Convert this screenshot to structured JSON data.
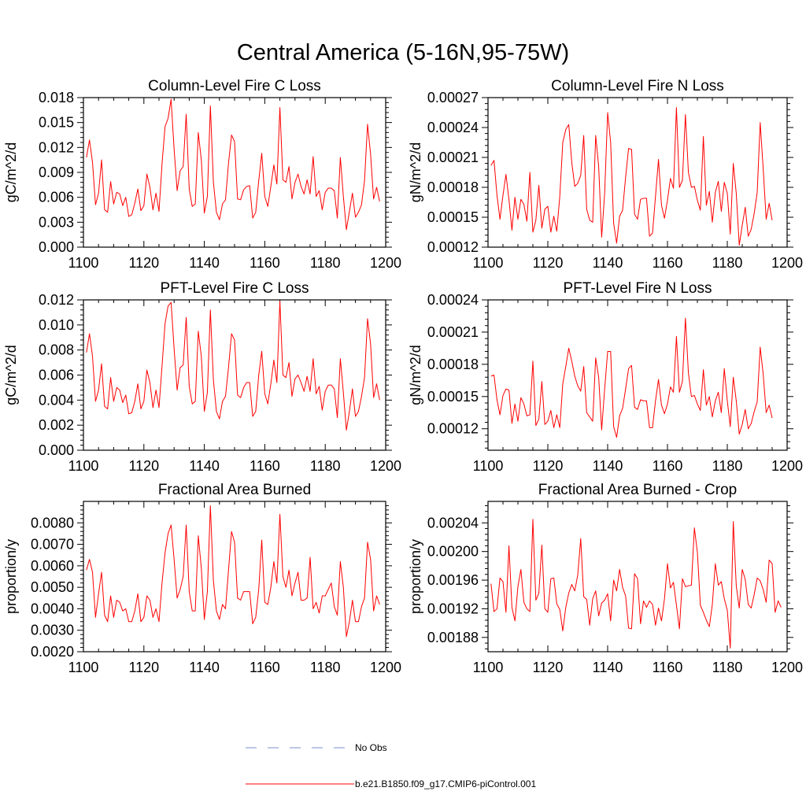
{
  "figure_title": "Central America (5-16N,95-75W)",
  "colors": {
    "series": "#ff0000",
    "obs": "#7a8fc7",
    "frame": "#000000"
  },
  "legend": [
    {
      "label": "No Obs",
      "style": "dashed",
      "color": "#7a8fc7"
    },
    {
      "label": "b.e21.B1850.f09_g17.CMIP6-piControl.001",
      "style": "solid",
      "color": "#ff0000"
    }
  ],
  "chart_data": [
    {
      "type": "line",
      "title": "Column-Level Fire C Loss",
      "ylabel": "gC/m^2/d",
      "xlabel": "",
      "xlim": [
        1100,
        1200
      ],
      "ylim": [
        0,
        0.018
      ],
      "xticks": [
        1100,
        1120,
        1140,
        1160,
        1180,
        1200
      ],
      "xtick_labels": [
        "1100",
        "1120",
        "1140",
        "1160",
        "1180",
        "1200"
      ],
      "yticks": [
        0,
        0.003,
        0.006,
        0.009,
        0.012,
        0.015,
        0.018
      ],
      "ytick_labels": [
        "0.000",
        "0.003",
        "0.006",
        "0.009",
        "0.012",
        "0.015",
        "0.018"
      ],
      "series": [
        {
          "name": "b.e21.B1850.f09_g17.CMIP6-piControl.001",
          "x_start": 1101,
          "values": [
            0.0108,
            0.0129,
            0.0102,
            0.0051,
            0.0065,
            0.0105,
            0.0045,
            0.0042,
            0.0079,
            0.0052,
            0.0066,
            0.0064,
            0.005,
            0.006,
            0.0037,
            0.0039,
            0.0053,
            0.007,
            0.0044,
            0.005,
            0.0088,
            0.0072,
            0.0045,
            0.0065,
            0.0043,
            0.01,
            0.0145,
            0.0155,
            0.0178,
            0.0118,
            0.0068,
            0.0092,
            0.0097,
            0.016,
            0.007,
            0.0049,
            0.0052,
            0.0138,
            0.0105,
            0.0041,
            0.0061,
            0.017,
            0.0078,
            0.0042,
            0.0033,
            0.0052,
            0.0057,
            0.0101,
            0.0135,
            0.0127,
            0.0058,
            0.0057,
            0.0069,
            0.0073,
            0.0074,
            0.0035,
            0.0042,
            0.008,
            0.0113,
            0.0061,
            0.0049,
            0.0073,
            0.0099,
            0.0076,
            0.0168,
            0.0081,
            0.0078,
            0.0097,
            0.0058,
            0.0078,
            0.0088,
            0.0073,
            0.0064,
            0.0081,
            0.0064,
            0.0109,
            0.0061,
            0.0068,
            0.0045,
            0.0066,
            0.0071,
            0.0071,
            0.0068,
            0.0035,
            0.0108,
            0.0061,
            0.0021,
            0.0043,
            0.0065,
            0.0036,
            0.0042,
            0.0051,
            0.008,
            0.0148,
            0.0112,
            0.0058,
            0.0072,
            0.0055
          ]
        }
      ]
    },
    {
      "type": "line",
      "title": "Column-Level Fire N Loss",
      "ylabel": "gN/m^2/d",
      "xlabel": "",
      "xlim": [
        1100,
        1200
      ],
      "ylim": [
        0.00012,
        0.00027
      ],
      "xticks": [
        1100,
        1120,
        1140,
        1160,
        1180,
        1200
      ],
      "xtick_labels": [
        "1100",
        "1120",
        "1140",
        "1160",
        "1180",
        "1200"
      ],
      "yticks": [
        0.00012,
        0.00015,
        0.00018,
        0.00021,
        0.00024,
        0.00027
      ],
      "ytick_labels": [
        "0.00012",
        "0.00015",
        "0.00018",
        "0.00021",
        "0.00024",
        "0.00027"
      ],
      "series": [
        {
          "name": "b.e21.B1850.f09_g17.CMIP6-piControl.001",
          "x_start": 1101,
          "values": [
            0.000202,
            0.000207,
            0.000172,
            0.000148,
            0.000172,
            0.000193,
            0.000168,
            0.000137,
            0.00017,
            0.000148,
            0.000168,
            0.000163,
            0.000146,
            0.000195,
            0.000135,
            0.000147,
            0.000182,
            0.000139,
            0.000158,
            0.000161,
            0.000135,
            0.000151,
            0.000136,
            0.000171,
            0.000225,
            0.000238,
            0.000243,
            0.000205,
            0.000181,
            0.000184,
            0.000192,
            0.000232,
            0.000158,
            0.000147,
            0.000145,
            0.000232,
            0.000201,
            0.00013,
            0.000174,
            0.000255,
            0.000225,
            0.000144,
            0.000124,
            0.000151,
            0.000157,
            0.00019,
            0.000219,
            0.000218,
            0.000153,
            0.000148,
            0.000168,
            0.000169,
            0.000169,
            0.000131,
            0.000134,
            0.000171,
            0.000208,
            0.000162,
            0.000149,
            0.000167,
            0.000189,
            0.000179,
            0.00026,
            0.00018,
            0.000187,
            0.000253,
            0.000195,
            0.00018,
            0.000181,
            0.000167,
            0.000157,
            0.000231,
            0.000162,
            0.000176,
            0.000145,
            0.000175,
            0.000186,
            0.000156,
            0.000185,
            0.000174,
            0.000133,
            0.000204,
            0.000174,
            0.000122,
            0.000142,
            0.00016,
            0.000131,
            0.000138,
            0.000154,
            0.000175,
            0.000245,
            0.000199,
            0.000148,
            0.000164,
            0.000147
          ]
        }
      ]
    },
    {
      "type": "line",
      "title": "PFT-Level Fire C Loss",
      "ylabel": "gC/m^2/d",
      "xlabel": "",
      "xlim": [
        1100,
        1200
      ],
      "ylim": [
        0,
        0.012
      ],
      "xticks": [
        1100,
        1120,
        1140,
        1160,
        1180,
        1200
      ],
      "xtick_labels": [
        "1100",
        "1120",
        "1140",
        "1160",
        "1180",
        "1200"
      ],
      "yticks": [
        0,
        0.002,
        0.004,
        0.006,
        0.008,
        0.01,
        0.012
      ],
      "ytick_labels": [
        "0.000",
        "0.002",
        "0.004",
        "0.006",
        "0.008",
        "0.010",
        "0.012"
      ],
      "series": [
        {
          "name": "b.e21.B1850.f09_g17.CMIP6-piControl.001",
          "x_start": 1101,
          "values": [
            0.0078,
            0.0093,
            0.0075,
            0.0039,
            0.0048,
            0.0069,
            0.0035,
            0.0033,
            0.0058,
            0.0039,
            0.005,
            0.0048,
            0.0038,
            0.0044,
            0.0029,
            0.003,
            0.0039,
            0.0053,
            0.0033,
            0.0039,
            0.0064,
            0.0054,
            0.0034,
            0.0048,
            0.0034,
            0.0067,
            0.0101,
            0.0115,
            0.0118,
            0.0081,
            0.0048,
            0.0066,
            0.0068,
            0.0106,
            0.0051,
            0.0037,
            0.0039,
            0.0095,
            0.0075,
            0.0031,
            0.0046,
            0.0112,
            0.0056,
            0.0031,
            0.0025,
            0.0039,
            0.0043,
            0.0066,
            0.0093,
            0.0088,
            0.0044,
            0.0042,
            0.005,
            0.0054,
            0.0054,
            0.0027,
            0.0031,
            0.006,
            0.0079,
            0.0045,
            0.0037,
            0.0053,
            0.0072,
            0.0054,
            0.0119,
            0.006,
            0.0058,
            0.007,
            0.0043,
            0.0057,
            0.006,
            0.0054,
            0.0047,
            0.0059,
            0.0047,
            0.0073,
            0.0045,
            0.0051,
            0.0032,
            0.0047,
            0.0052,
            0.0052,
            0.0049,
            0.0026,
            0.0073,
            0.0046,
            0.0016,
            0.0031,
            0.0049,
            0.0027,
            0.0031,
            0.0043,
            0.0058,
            0.0105,
            0.0085,
            0.0042,
            0.0053,
            0.004
          ]
        }
      ]
    },
    {
      "type": "line",
      "title": "PFT-Level Fire N Loss",
      "ylabel": "gN/m^2/d",
      "xlabel": "",
      "xlim": [
        1100,
        1200
      ],
      "ylim": [
        0.0001,
        0.00024
      ],
      "xticks": [
        1100,
        1120,
        1140,
        1160,
        1180,
        1200
      ],
      "xtick_labels": [
        "1100",
        "1120",
        "1140",
        "1160",
        "1180",
        "1200"
      ],
      "yticks": [
        0.00012,
        0.00015,
        0.00018,
        0.00021,
        0.00024
      ],
      "ytick_labels": [
        "0.00012",
        "0.00015",
        "0.00018",
        "0.00021",
        "0.00024"
      ],
      "series": [
        {
          "name": "b.e21.B1850.f09_g17.CMIP6-piControl.001",
          "x_start": 1101,
          "values": [
            0.000169,
            0.00017,
            0.000147,
            0.000133,
            0.000151,
            0.000157,
            0.000156,
            0.000125,
            0.000143,
            0.000127,
            0.000149,
            0.000143,
            0.000132,
            0.000133,
            0.000183,
            0.000123,
            0.000129,
            0.000164,
            0.000124,
            0.000127,
            0.000137,
            0.000121,
            0.000133,
            0.000121,
            0.000162,
            0.000178,
            0.000195,
            0.000183,
            0.000169,
            0.00016,
            0.000155,
            0.000178,
            0.000135,
            0.000131,
            0.000127,
            0.000186,
            0.000168,
            0.000119,
            0.000157,
            0.000192,
            0.000192,
            0.000122,
            0.000112,
            0.000132,
            0.000139,
            0.000157,
            0.000176,
            0.000179,
            0.00014,
            0.000138,
            0.000147,
            0.000146,
            0.000146,
            0.000121,
            0.000121,
            0.000146,
            0.000166,
            0.000142,
            0.000134,
            0.000143,
            0.000159,
            0.000154,
            0.000206,
            0.000154,
            0.000164,
            0.000223,
            0.000172,
            0.00015,
            0.000151,
            0.000143,
            0.000137,
            0.000175,
            0.000142,
            0.00015,
            0.000131,
            0.000146,
            0.000154,
            0.000135,
            0.000176,
            0.000146,
            0.000122,
            0.000168,
            0.000146,
            0.000115,
            0.000124,
            0.000138,
            0.00012,
            0.000125,
            0.000136,
            0.000145,
            0.000196,
            0.000171,
            0.000135,
            0.000142,
            0.00013
          ]
        }
      ]
    },
    {
      "type": "line",
      "title": "Fractional Area Burned",
      "ylabel": "proportion/y",
      "xlabel": "",
      "xlim": [
        1100,
        1200
      ],
      "ylim": [
        0.002,
        0.009
      ],
      "xticks": [
        1100,
        1120,
        1140,
        1160,
        1180,
        1200
      ],
      "xtick_labels": [
        "1100",
        "1120",
        "1140",
        "1160",
        "1180",
        "1200"
      ],
      "yticks": [
        0.002,
        0.003,
        0.004,
        0.005,
        0.006,
        0.007,
        0.008
      ],
      "ytick_labels": [
        "0.0020",
        "0.0030",
        "0.0040",
        "0.0050",
        "0.0060",
        "0.0070",
        "0.0080"
      ],
      "series": [
        {
          "name": "b.e21.B1850.f09_g17.CMIP6-piControl.001",
          "x_start": 1101,
          "values": [
            0.0058,
            0.0063,
            0.0057,
            0.0036,
            0.0047,
            0.0057,
            0.0037,
            0.0034,
            0.0046,
            0.0036,
            0.0044,
            0.0043,
            0.0039,
            0.004,
            0.0034,
            0.0034,
            0.0039,
            0.0047,
            0.0034,
            0.0036,
            0.0046,
            0.0044,
            0.0036,
            0.004,
            0.0034,
            0.0052,
            0.0066,
            0.0075,
            0.0079,
            0.0063,
            0.0045,
            0.0049,
            0.0055,
            0.0079,
            0.0048,
            0.0039,
            0.0039,
            0.0074,
            0.0059,
            0.0035,
            0.0048,
            0.0088,
            0.0053,
            0.0039,
            0.0035,
            0.0042,
            0.004,
            0.0058,
            0.0076,
            0.0071,
            0.0045,
            0.0044,
            0.0048,
            0.0048,
            0.0048,
            0.0033,
            0.0036,
            0.0049,
            0.0072,
            0.0043,
            0.0042,
            0.005,
            0.0062,
            0.0052,
            0.0084,
            0.0055,
            0.005,
            0.0058,
            0.0046,
            0.0052,
            0.0057,
            0.0044,
            0.0044,
            0.0045,
            0.0064,
            0.004,
            0.0043,
            0.0038,
            0.0046,
            0.0046,
            0.0049,
            0.0052,
            0.0041,
            0.0037,
            0.0062,
            0.005,
            0.0027,
            0.0034,
            0.0044,
            0.0034,
            0.0034,
            0.0041,
            0.0045,
            0.0071,
            0.0063,
            0.0039,
            0.0046,
            0.0042
          ]
        }
      ]
    },
    {
      "type": "line",
      "title": "Fractional Area Burned - Crop",
      "ylabel": "proportion/y",
      "xlabel": "",
      "xlim": [
        1100,
        1200
      ],
      "ylim": [
        0.00186,
        0.00207
      ],
      "xticks": [
        1100,
        1120,
        1140,
        1160,
        1180,
        1200
      ],
      "xtick_labels": [
        "1100",
        "1120",
        "1140",
        "1160",
        "1180",
        "1200"
      ],
      "yticks": [
        0.00188,
        0.00192,
        0.00196,
        0.002,
        0.00204
      ],
      "ytick_labels": [
        "0.00188",
        "0.00192",
        "0.00196",
        "0.00200",
        "0.00204"
      ],
      "series": [
        {
          "name": "b.e21.B1850.f09_g17.CMIP6-piControl.001",
          "x_start": 1101,
          "values": [
            0.001955,
            0.001916,
            0.00192,
            0.001963,
            0.001958,
            0.001915,
            0.002008,
            0.001922,
            0.001903,
            0.001951,
            0.001975,
            0.001929,
            0.00192,
            0.001916,
            0.002045,
            0.001932,
            0.001942,
            0.002009,
            0.00192,
            0.001915,
            0.001962,
            0.001963,
            0.001927,
            0.001919,
            0.001889,
            0.001922,
            0.001942,
            0.001954,
            0.001945,
            0.001967,
            0.002018,
            0.001937,
            0.001933,
            0.001897,
            0.001934,
            0.001945,
            0.00191,
            0.001928,
            0.001932,
            0.001941,
            0.001903,
            0.00196,
            0.001945,
            0.001975,
            0.00195,
            0.001938,
            0.001893,
            0.001892,
            0.001969,
            0.001962,
            0.001899,
            0.001931,
            0.001922,
            0.001931,
            0.001926,
            0.001897,
            0.001921,
            0.001903,
            0.001934,
            0.001983,
            0.001949,
            0.001957,
            0.001925,
            0.001892,
            0.001962,
            0.001951,
            0.001952,
            0.001953,
            0.002033,
            0.001999,
            0.001925,
            0.001915,
            0.001904,
            0.001895,
            0.001926,
            0.001983,
            0.001953,
            0.001958,
            0.001934,
            0.001918,
            0.001865,
            0.002042,
            0.001952,
            0.001921,
            0.001975,
            0.001961,
            0.001926,
            0.001921,
            0.00194,
            0.001963,
            0.001959,
            0.001947,
            0.001929,
            0.001988,
            0.001983,
            0.001915,
            0.001931,
            0.001922
          ]
        }
      ]
    }
  ]
}
